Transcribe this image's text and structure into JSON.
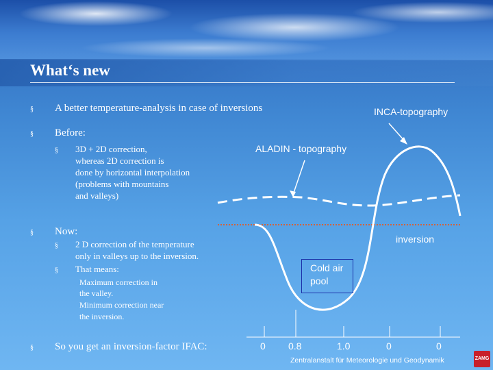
{
  "slide": {
    "title": "What‘s new",
    "bullets": {
      "b1": "A better temperature-analysis in case of inversions",
      "b2": "Before:",
      "b2_sub1": [
        "3D + 2D correction,",
        "whereas 2D correction is",
        "done by horizontal interpolation",
        "(problems with mountains",
        "and valleys)"
      ],
      "b3": "Now:",
      "b3_sub1": [
        "2 D correction of the temperature",
        "only in valleys up to the inversion."
      ],
      "b3_sub2": "That means:",
      "b3_sub2_detail": [
        "Maximum correction in",
        "the valley.",
        "Minimum correction near",
        "the inversion."
      ],
      "b4": "So you get an inversion-factor IFAC:"
    },
    "bullet_glyph": "§"
  },
  "diagram": {
    "labels": {
      "inca": "INCA-topography",
      "aladin": "ALADIN - topography",
      "inversion": "inversion",
      "cold_air_pool": [
        "Cold air",
        "pool"
      ]
    },
    "ifac_values": [
      "0",
      "0.8",
      "1.0",
      "0",
      "0"
    ],
    "colors": {
      "inca_line": "#ffffff",
      "aladin_line": "#ffffff",
      "inversion_line": "#d0643c",
      "cold_box_border": "#1b2fa8"
    }
  },
  "footer": {
    "institution": "Zentralanstalt für Meteorologie und Geodynamik",
    "logo": "ZAMG"
  }
}
